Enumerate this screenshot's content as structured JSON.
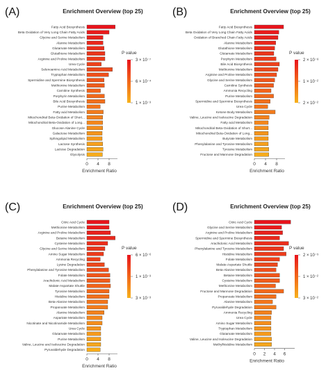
{
  "chart_data": [
    {
      "type": "bar",
      "orientation": "horizontal",
      "panel_label": "(A)",
      "title": "Enrichment Overview (top 25)",
      "xlabel": "Enrichment Ratio",
      "xticks": [
        "0",
        "4",
        "8"
      ],
      "xlim": [
        0,
        11
      ],
      "legend_title": "P value",
      "legend_ticks": [
        {
          "label": "3 × 10⁻⁷",
          "pos": 0.0
        },
        {
          "label": "6 × 10⁻⁴",
          "pos": 0.5
        },
        {
          "label": "1 × 10⁻³",
          "pos": 1.0
        }
      ],
      "categories": [
        "Fatty Acid Biosynthesis",
        "Beta Oxidation of Very Long Chain Fatty Acids",
        "Glycine and Serine Metabolism",
        "Alanine Metabolism",
        "Glutamate Metabolism",
        "Glutathione Metabolism",
        "Arginine and Proline Metabolism",
        "Urea Cycle",
        "Selenoamino Acid Metabolism",
        "Tryptophan Metabolism",
        "Spermidine and Spermine Biosynthesis",
        "Methionine Metabolism",
        "Carnitine Synthesis",
        "Porphyrin Metabolism",
        "Bile Acid Biosynthesis",
        "Purine Metabolism",
        "Fatty acid Metabolism",
        "Mitochondrial Beta-Oxidation of Short...",
        "Mitochondrial Beta-Oxidation of Long...",
        "Glucose-Alanine Cycle",
        "Galactose Metabolism",
        "Sphingolipid Metabolism",
        "Lactose Synthesis",
        "Lactose Degradation",
        "Glycolysis"
      ],
      "values": [
        10.2,
        8.0,
        5.8,
        5.8,
        6.2,
        6.5,
        6.5,
        5.2,
        9.2,
        7.8,
        6.2,
        6.3,
        4.9,
        6.3,
        6.5,
        4.8,
        5.9,
        5.7,
        5.7,
        5.7,
        5.5,
        5.5,
        5.7,
        5.8,
        5.6
      ],
      "color_scale": [
        0.0,
        0.04,
        0.08,
        0.12,
        0.16,
        0.2,
        0.24,
        0.28,
        0.32,
        0.36,
        0.4,
        0.44,
        0.48,
        0.52,
        0.56,
        0.6,
        0.64,
        0.68,
        0.72,
        0.76,
        0.8,
        0.84,
        0.88,
        0.92,
        0.96
      ]
    },
    {
      "type": "bar",
      "orientation": "horizontal",
      "panel_label": "(B)",
      "title": "Enrichment Overview (top 25)",
      "xlabel": "Enrichment Ratio",
      "xticks": [
        "0",
        "4",
        "8"
      ],
      "xlim": [
        0,
        11
      ],
      "legend_title": "P value",
      "legend_ticks": [
        {
          "label": "2 × 10⁻⁸",
          "pos": 0.0
        },
        {
          "label": "1 × 10⁻²",
          "pos": 0.5
        },
        {
          "label": "2 × 10⁻²",
          "pos": 1.0
        }
      ],
      "categories": [
        "Fatty Acid Biosynthesis",
        "Beta Oxidation of Very Long Chain Fatty Acids",
        "Oxidation of Branched Chain Fatty Acids",
        "Alanine Metabolism",
        "Glutathione Metabolism",
        "Glutamate Metabolism",
        "Porphyrin Metabolism",
        "Bile Acid Biosynthesis",
        "Methionine Metabolism",
        "Arginine and Proline Metabolism",
        "Glycine and Serine Metabolism",
        "Carnitine Synthesis",
        "Ammonia Recycling",
        "Purine Metabolism",
        "Spermidine and Spermine Biosynthesis",
        "Urea Cycle",
        "Ketone Body Metabolism",
        "Valine, Leucine and Isoleucine Degradation",
        "Fatty acid Metabolism",
        "Mitochondrial Beta-Oxidation of Short...",
        "Mitochondrial Beta-Oxidation of Long...",
        "Butyrate Metabolism",
        "Phenylalanine and Tyrosine Metabolism",
        "Tyrosine Metabolism",
        "Fructose and Mannose Degradation"
      ],
      "values": [
        10.5,
        8.8,
        8.5,
        7.7,
        7.3,
        7.0,
        7.8,
        9.0,
        8.5,
        8.0,
        7.3,
        6.9,
        6.0,
        6.9,
        5.7,
        4.8,
        7.5,
        5.3,
        5.0,
        5.0,
        5.0,
        5.0,
        5.0,
        5.2,
        5.2
      ],
      "color_scale": [
        0.0,
        0.04,
        0.08,
        0.12,
        0.16,
        0.2,
        0.24,
        0.28,
        0.32,
        0.36,
        0.4,
        0.44,
        0.48,
        0.52,
        0.56,
        0.6,
        0.64,
        0.68,
        0.72,
        0.76,
        0.8,
        0.84,
        0.88,
        0.92,
        0.96
      ]
    },
    {
      "type": "bar",
      "orientation": "horizontal",
      "panel_label": "(C)",
      "title": "Enrichment Overview (top 25)",
      "xlabel": "Enrichment Ratio",
      "xticks": [
        "0",
        "4",
        "8"
      ],
      "xlim": [
        0,
        11
      ],
      "legend_title": "P value",
      "legend_ticks": [
        {
          "label": "6 × 10⁻⁶",
          "pos": 0.0
        },
        {
          "label": "1 × 10⁻³",
          "pos": 0.5
        },
        {
          "label": "3 × 10⁻³",
          "pos": 1.0
        }
      ],
      "categories": [
        "Citric Acid Cycle",
        "Methionine Metabolism",
        "Arginine and Proline Metabolism",
        "Betaine Metabolism",
        "Cysteine Metabolism",
        "Glycine and Serine Metabolism",
        "Amino Sugar Metabolism",
        "Ammonia Recycling",
        "Lysine Degradation",
        "Phenylalanine and Tyrosine Metabolism",
        "Folate Metabolism",
        "Arachidonic Acid Metabolism",
        "Malate-Aspartate Shuttle",
        "Tyrosine Metabolism",
        "Histidine Metabolism",
        "Beta-Alanine Metabolism",
        "Propanoate Metabolism",
        "Alanine Metabolism",
        "Aspartate Metabolism",
        "Nicotinate and Nicotinamide Metabolism",
        "Urea Cycle",
        "Glutamate Metabolism",
        "Purine Metabolism",
        "Valine, Leucine and Isoleucine Degradation",
        "Pyruvaldehyde Degradation"
      ],
      "values": [
        8.0,
        8.0,
        8.5,
        10.2,
        7.5,
        6.5,
        6.0,
        4.8,
        6.3,
        7.8,
        8.3,
        8.3,
        8.5,
        8.0,
        8.0,
        7.5,
        7.5,
        6.2,
        5.5,
        5.5,
        5.0,
        5.0,
        5.0,
        5.0,
        4.8
      ],
      "color_scale": [
        0.0,
        0.04,
        0.08,
        0.12,
        0.16,
        0.2,
        0.24,
        0.28,
        0.32,
        0.36,
        0.4,
        0.44,
        0.48,
        0.52,
        0.56,
        0.6,
        0.64,
        0.68,
        0.72,
        0.76,
        0.8,
        0.84,
        0.88,
        0.92,
        0.96
      ]
    },
    {
      "type": "bar",
      "orientation": "horizontal",
      "panel_label": "(D)",
      "title": "Enrichment Overview (top 25)",
      "xlabel": "Enrichment Ratio",
      "xticks": [
        "0",
        "2",
        "4",
        "6"
      ],
      "xlim": [
        0,
        8
      ],
      "legend_title": "P value",
      "legend_ticks": [
        {
          "label": "2 × 10⁻⁵",
          "pos": 0.0
        },
        {
          "label": "1 × 10⁻²",
          "pos": 0.5
        },
        {
          "label": "3 × 10⁻²",
          "pos": 1.0
        }
      ],
      "categories": [
        "Citric Acid Cycle",
        "Glycine and Serine Metabolism",
        "Arginine and Proline Metabolism",
        "Spermidine and Spermine Biosynthesis",
        "Arachidonic Acid Metabolism",
        "Phenylalanine and Tyrosine Metabolism",
        "Histidine Metabolism",
        "Folate Metabolism",
        "Malate-Aspartate Shuttle",
        "Beta-Alanine Metabolism",
        "Betaine Metabolism",
        "Cysteine Metabolism",
        "Methionine Metabolism",
        "Fructose and Mannose Degradation",
        "Propanoate Metabolism",
        "Alanine Metabolism",
        "Pyruvaldehyde Degradation",
        "Ammonia Recycling",
        "Urea Cycle",
        "Amino Sugar Metabolism",
        "Tryptophan Metabolism",
        "Glutamate Metabolism",
        "Valine, Leucine and Isoleucine Degradation",
        "Methylhistidine Metabolism"
      ],
      "values": [
        7.2,
        5.4,
        5.6,
        5.0,
        6.8,
        5.8,
        6.3,
        5.0,
        4.6,
        4.3,
        5.0,
        5.0,
        4.2,
        5.8,
        4.3,
        3.6,
        4.3,
        3.4,
        3.3,
        3.3,
        3.3,
        3.3,
        3.4,
        3.4
      ],
      "color_scale": [
        0.0,
        0.04,
        0.08,
        0.12,
        0.16,
        0.2,
        0.24,
        0.28,
        0.32,
        0.36,
        0.4,
        0.44,
        0.48,
        0.52,
        0.56,
        0.6,
        0.64,
        0.68,
        0.72,
        0.76,
        0.8,
        0.84,
        0.88,
        0.92
      ]
    }
  ]
}
